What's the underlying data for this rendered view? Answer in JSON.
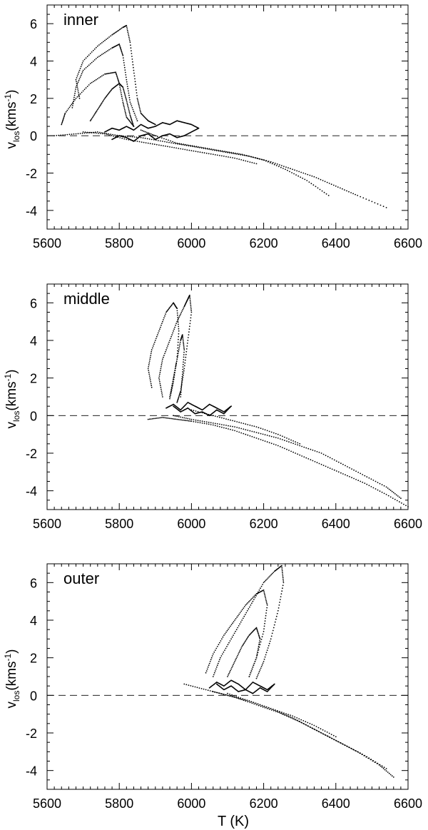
{
  "figure": {
    "xlabel": "T (K)"
  },
  "chart_data": [
    {
      "type": "scatter",
      "annotation": "inner",
      "ylabel_main": "v",
      "ylabel_sub": "los",
      "ylabel_unit": "(kms",
      "ylabel_sup": "-1",
      "ylabel_close": ")",
      "xlim": [
        5600,
        6600
      ],
      "ylim": [
        -5,
        7
      ],
      "xticks": [
        5600,
        5800,
        6000,
        6200,
        6400,
        6600
      ],
      "yticks": [
        -4,
        -2,
        0,
        2,
        4,
        6
      ],
      "reference_line": {
        "y": 0,
        "style": "dashed"
      },
      "series": [
        {
          "x": [
            5620,
            5680,
            5740,
            5800,
            5860,
            5920,
            5980,
            6040,
            6100,
            6160,
            6220,
            6280,
            6340,
            6400,
            6460,
            6540
          ],
          "y": [
            0.0,
            0.1,
            0.2,
            0.0,
            -0.1,
            -0.3,
            -0.5,
            -0.7,
            -0.9,
            -1.1,
            -1.4,
            -1.8,
            -2.2,
            -2.7,
            -3.2,
            -3.85
          ]
        },
        {
          "x": [
            5860,
            5900,
            5960,
            6020,
            6080,
            6140,
            6200,
            6260,
            6320,
            6380
          ],
          "y": [
            0.3,
            0.0,
            -0.4,
            -0.6,
            -0.8,
            -1.0,
            -1.3,
            -1.8,
            -2.4,
            -3.2
          ]
        },
        {
          "x": [
            5700,
            5760,
            5820,
            5880,
            5940,
            6000,
            6060,
            6120,
            6180
          ],
          "y": [
            0.2,
            0.1,
            -0.2,
            -0.4,
            -0.6,
            -0.8,
            -1.0,
            -1.2,
            -1.5
          ]
        },
        {
          "x": [
            5690,
            5680,
            5700,
            5740,
            5780,
            5810,
            5820,
            5830,
            5840,
            5850,
            5860,
            5880,
            5900
          ],
          "y": [
            2.0,
            3.0,
            4.0,
            4.8,
            5.4,
            5.8,
            5.9,
            5.0,
            3.5,
            2.0,
            1.2,
            0.8,
            0.6
          ]
        },
        {
          "x": [
            5670,
            5680,
            5700,
            5740,
            5780,
            5800,
            5810,
            5820,
            5830,
            5850
          ],
          "y": [
            1.5,
            2.6,
            3.5,
            4.2,
            4.7,
            4.9,
            4.3,
            3.0,
            1.8,
            0.8
          ]
        },
        {
          "x": [
            5640,
            5650,
            5680,
            5720,
            5760,
            5790,
            5800,
            5810,
            5820,
            5840
          ],
          "y": [
            0.6,
            1.2,
            2.0,
            2.8,
            3.3,
            3.4,
            2.8,
            1.8,
            1.0,
            0.5
          ]
        },
        {
          "x": [
            5720,
            5740,
            5760,
            5780,
            5800,
            5810,
            5820,
            5830,
            5840
          ],
          "y": [
            0.8,
            1.4,
            2.0,
            2.5,
            2.8,
            2.6,
            1.9,
            1.1,
            0.5
          ]
        },
        {
          "x": [
            5760,
            5780,
            5800,
            5820,
            5840,
            5860,
            5880,
            5900,
            5920,
            5940,
            5960,
            5980,
            6000,
            6020,
            6000,
            5980,
            5960,
            5940,
            5920,
            5900,
            5880,
            5860,
            5840,
            5820,
            5800,
            5780
          ],
          "y": [
            0.2,
            0.4,
            0.3,
            0.5,
            0.3,
            0.6,
            0.4,
            0.5,
            0.7,
            0.6,
            0.8,
            0.7,
            0.6,
            0.4,
            0.2,
            0.0,
            -0.1,
            0.1,
            0.0,
            -0.2,
            0.1,
            0.0,
            -0.3,
            -0.1,
            0.0,
            -0.2
          ]
        }
      ]
    },
    {
      "type": "scatter",
      "annotation": "middle",
      "ylabel_main": "v",
      "ylabel_sub": "los",
      "ylabel_unit": "(kms",
      "ylabel_sup": "-1",
      "ylabel_close": ")",
      "xlim": [
        5600,
        6600
      ],
      "ylim": [
        -5,
        7
      ],
      "xticks": [
        5600,
        5800,
        6000,
        6200,
        6400,
        6600
      ],
      "yticks": [
        -4,
        -2,
        0,
        2,
        4,
        6
      ],
      "reference_line": {
        "y": 0,
        "style": "dashed"
      },
      "series": [
        {
          "x": [
            5880,
            5920,
            5960,
            6000,
            6060,
            6120,
            6180,
            6240,
            6300,
            6360,
            6420,
            6480,
            6540,
            6600
          ],
          "y": [
            -0.2,
            -0.1,
            -0.2,
            -0.3,
            -0.5,
            -0.8,
            -1.2,
            -1.6,
            -2.1,
            -2.6,
            -3.1,
            -3.6,
            -4.2,
            -4.85
          ]
        },
        {
          "x": [
            5950,
            6000,
            6060,
            6120,
            6180,
            6240,
            6300,
            6360,
            6420,
            6480,
            6540,
            6580
          ],
          "y": [
            0.0,
            -0.2,
            -0.4,
            -0.6,
            -0.9,
            -1.2,
            -1.6,
            -2.0,
            -2.6,
            -3.2,
            -3.8,
            -4.4
          ]
        },
        {
          "x": [
            6000,
            6060,
            6120,
            6180,
            6240,
            6300
          ],
          "y": [
            0.3,
            0.0,
            -0.3,
            -0.6,
            -1.0,
            -1.5
          ]
        },
        {
          "x": [
            5920,
            5910,
            5920,
            5940,
            5960,
            5980,
            5990,
            5995,
            6000,
            5990,
            5980,
            5970,
            5960
          ],
          "y": [
            1.0,
            2.0,
            3.0,
            4.0,
            5.0,
            5.8,
            6.2,
            6.4,
            5.5,
            4.0,
            2.5,
            1.3,
            0.7
          ]
        },
        {
          "x": [
            5890,
            5880,
            5890,
            5910,
            5930,
            5950,
            5960,
            5965,
            5960,
            5950,
            5940
          ],
          "y": [
            1.5,
            2.5,
            3.5,
            4.5,
            5.5,
            6.0,
            5.7,
            4.5,
            3.0,
            1.8,
            0.9
          ]
        },
        {
          "x": [
            5940,
            5950,
            5960,
            5970,
            5975,
            5980,
            5975,
            5970
          ],
          "y": [
            1.0,
            2.0,
            3.0,
            4.0,
            4.3,
            3.5,
            2.2,
            1.0
          ]
        },
        {
          "x": [
            5930,
            5950,
            5970,
            5990,
            6010,
            6030,
            6050,
            6070,
            6090,
            6110,
            6090,
            6070,
            6050,
            6030,
            6010,
            5990,
            5970,
            5950
          ],
          "y": [
            0.4,
            0.6,
            0.3,
            0.7,
            0.5,
            0.3,
            0.6,
            0.4,
            0.2,
            0.5,
            0.1,
            0.3,
            0.0,
            0.2,
            0.1,
            0.4,
            0.2,
            0.5
          ]
        }
      ]
    },
    {
      "type": "scatter",
      "annotation": "outer",
      "ylabel_main": "v",
      "ylabel_sub": "los",
      "ylabel_unit": "(kms",
      "ylabel_sup": "-1",
      "ylabel_close": ")",
      "xlim": [
        5600,
        6600
      ],
      "ylim": [
        -5,
        7
      ],
      "xticks": [
        5600,
        5800,
        6000,
        6200,
        6400,
        6600
      ],
      "yticks": [
        -4,
        -2,
        0,
        2,
        4,
        6
      ],
      "reference_line": {
        "y": 0,
        "style": "dashed"
      },
      "series": [
        {
          "x": [
            5980,
            6040,
            6100,
            6160,
            6220,
            6280,
            6340,
            6400,
            6460,
            6520,
            6560
          ],
          "y": [
            0.6,
            0.3,
            0.0,
            -0.3,
            -0.7,
            -1.2,
            -1.8,
            -2.4,
            -3.0,
            -3.7,
            -4.35
          ]
        },
        {
          "x": [
            6060,
            6120,
            6180,
            6240,
            6300,
            6360,
            6420,
            6480,
            6540
          ],
          "y": [
            0.2,
            -0.1,
            -0.5,
            -0.9,
            -1.4,
            -2.0,
            -2.6,
            -3.2,
            -3.9
          ]
        },
        {
          "x": [
            6100,
            6160,
            6220,
            6280,
            6340,
            6400
          ],
          "y": [
            0.1,
            -0.3,
            -0.7,
            -1.1,
            -1.6,
            -2.2
          ]
        },
        {
          "x": [
            6060,
            6080,
            6110,
            6140,
            6170,
            6200,
            6230,
            6250,
            6255,
            6240,
            6220,
            6200,
            6180
          ],
          "y": [
            1.0,
            2.0,
            3.0,
            4.0,
            5.0,
            6.0,
            6.6,
            6.9,
            6.0,
            4.5,
            3.0,
            1.8,
            0.9
          ]
        },
        {
          "x": [
            6040,
            6060,
            6090,
            6120,
            6150,
            6180,
            6200,
            6210,
            6200,
            6180,
            6160
          ],
          "y": [
            1.2,
            2.2,
            3.2,
            4.0,
            4.8,
            5.4,
            5.6,
            4.8,
            3.4,
            2.0,
            1.0
          ]
        },
        {
          "x": [
            6100,
            6120,
            6140,
            6160,
            6180,
            6190,
            6180,
            6160
          ],
          "y": [
            1.0,
            1.8,
            2.6,
            3.2,
            3.6,
            3.0,
            2.0,
            1.0
          ]
        },
        {
          "x": [
            6050,
            6070,
            6090,
            6110,
            6130,
            6150,
            6170,
            6190,
            6210,
            6230,
            6210,
            6190,
            6170,
            6150,
            6130,
            6110,
            6090,
            6070
          ],
          "y": [
            0.4,
            0.7,
            0.5,
            0.8,
            0.6,
            0.3,
            0.7,
            0.5,
            0.3,
            0.6,
            0.2,
            0.4,
            0.1,
            0.3,
            0.2,
            0.5,
            0.3,
            0.6
          ]
        }
      ]
    }
  ]
}
